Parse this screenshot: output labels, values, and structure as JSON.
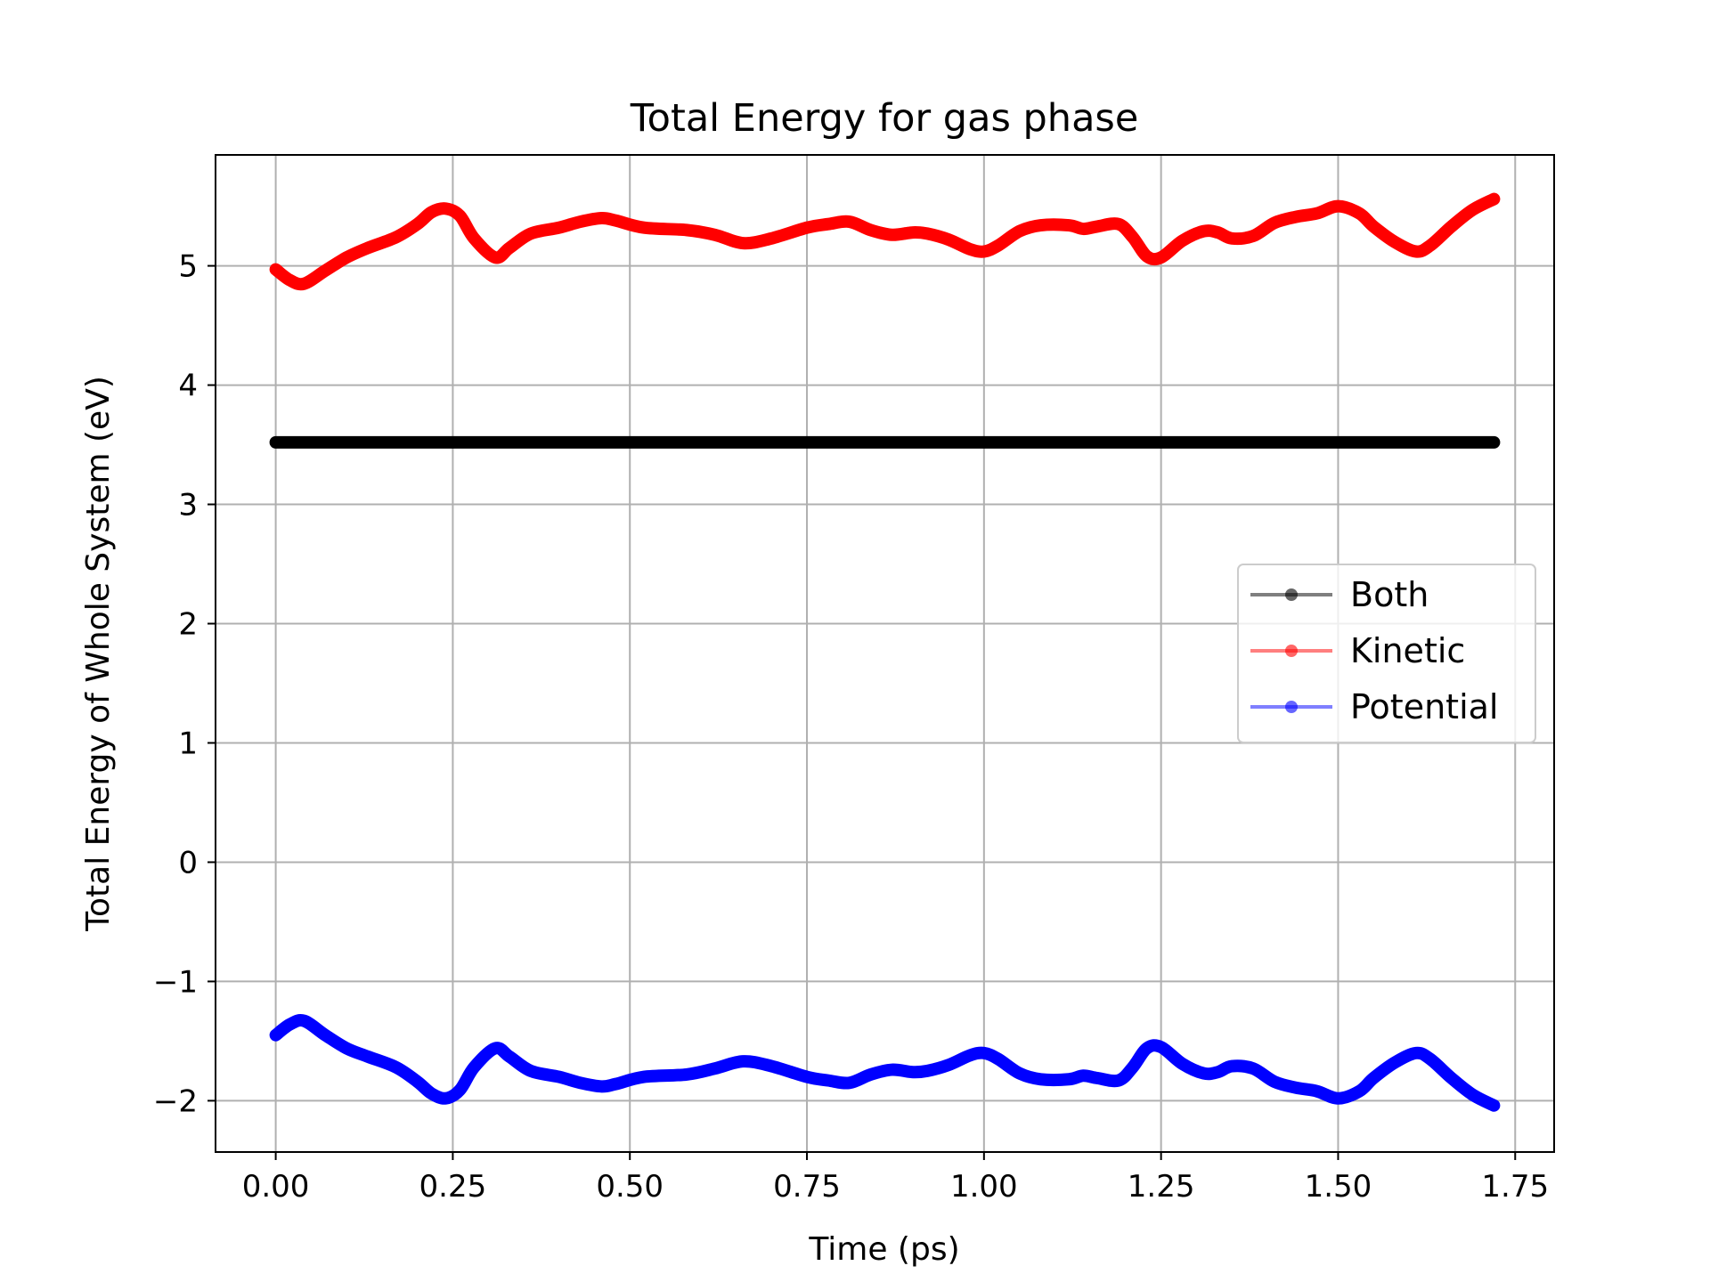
{
  "chart_data": {
    "type": "line",
    "title": "Total Energy for gas phase",
    "xlabel": "Time (ps)",
    "ylabel": "Total Energy of Whole System (eV)",
    "xlim": [
      -0.085,
      1.805
    ],
    "ylim": [
      -2.43,
      5.93
    ],
    "x_ticks": [
      0.0,
      0.25,
      0.5,
      0.75,
      1.0,
      1.25,
      1.5,
      1.75
    ],
    "x_tick_labels": [
      "0.00",
      "0.25",
      "0.50",
      "0.75",
      "1.00",
      "1.25",
      "1.50",
      "1.75"
    ],
    "y_ticks": [
      -2,
      -1,
      0,
      1,
      2,
      3,
      4,
      5
    ],
    "y_tick_labels": [
      "−2",
      "−1",
      "0",
      "1",
      "2",
      "3",
      "4",
      "5"
    ],
    "grid": true,
    "legend_position": "center-right",
    "series": [
      {
        "name": "Both",
        "color": "#000000",
        "x": [
          0.0,
          0.25,
          0.5,
          0.75,
          1.0,
          1.25,
          1.5,
          1.72
        ],
        "y": [
          3.52,
          3.52,
          3.52,
          3.52,
          3.52,
          3.52,
          3.52,
          3.52
        ]
      },
      {
        "name": "Kinetic",
        "color": "#ff0000",
        "x": [
          0.0,
          0.02,
          0.04,
          0.07,
          0.1,
          0.13,
          0.17,
          0.2,
          0.22,
          0.24,
          0.26,
          0.28,
          0.31,
          0.33,
          0.36,
          0.4,
          0.43,
          0.46,
          0.48,
          0.52,
          0.58,
          0.62,
          0.66,
          0.7,
          0.75,
          0.78,
          0.81,
          0.84,
          0.87,
          0.9,
          0.92,
          0.95,
          0.98,
          1.0,
          1.02,
          1.05,
          1.08,
          1.12,
          1.14,
          1.16,
          1.19,
          1.21,
          1.23,
          1.25,
          1.28,
          1.31,
          1.33,
          1.35,
          1.38,
          1.41,
          1.44,
          1.47,
          1.5,
          1.53,
          1.55,
          1.58,
          1.61,
          1.63,
          1.66,
          1.69,
          1.72
        ],
        "y": [
          4.97,
          4.88,
          4.85,
          4.96,
          5.07,
          5.15,
          5.24,
          5.35,
          5.45,
          5.48,
          5.42,
          5.23,
          5.07,
          5.15,
          5.27,
          5.32,
          5.37,
          5.4,
          5.38,
          5.32,
          5.3,
          5.26,
          5.19,
          5.23,
          5.32,
          5.35,
          5.37,
          5.3,
          5.26,
          5.28,
          5.27,
          5.22,
          5.14,
          5.12,
          5.17,
          5.29,
          5.34,
          5.34,
          5.31,
          5.33,
          5.35,
          5.24,
          5.08,
          5.07,
          5.21,
          5.29,
          5.28,
          5.23,
          5.25,
          5.36,
          5.41,
          5.44,
          5.5,
          5.44,
          5.33,
          5.2,
          5.12,
          5.17,
          5.33,
          5.47,
          5.56
        ]
      },
      {
        "name": "Potential",
        "color": "#0000ff",
        "x": [
          0.0,
          0.02,
          0.04,
          0.07,
          0.1,
          0.13,
          0.17,
          0.2,
          0.22,
          0.24,
          0.26,
          0.28,
          0.31,
          0.33,
          0.36,
          0.4,
          0.43,
          0.46,
          0.48,
          0.52,
          0.58,
          0.62,
          0.66,
          0.7,
          0.75,
          0.78,
          0.81,
          0.84,
          0.87,
          0.9,
          0.92,
          0.95,
          0.98,
          1.0,
          1.02,
          1.05,
          1.08,
          1.12,
          1.14,
          1.16,
          1.19,
          1.21,
          1.23,
          1.25,
          1.28,
          1.31,
          1.33,
          1.35,
          1.38,
          1.41,
          1.44,
          1.47,
          1.5,
          1.53,
          1.55,
          1.58,
          1.61,
          1.63,
          1.66,
          1.69,
          1.72
        ],
        "y": [
          -1.45,
          -1.36,
          -1.33,
          -1.45,
          -1.56,
          -1.63,
          -1.72,
          -1.84,
          -1.94,
          -1.98,
          -1.91,
          -1.72,
          -1.56,
          -1.63,
          -1.75,
          -1.8,
          -1.85,
          -1.88,
          -1.86,
          -1.8,
          -1.78,
          -1.73,
          -1.67,
          -1.71,
          -1.8,
          -1.83,
          -1.85,
          -1.78,
          -1.74,
          -1.76,
          -1.75,
          -1.7,
          -1.62,
          -1.6,
          -1.65,
          -1.77,
          -1.82,
          -1.82,
          -1.79,
          -1.81,
          -1.83,
          -1.72,
          -1.56,
          -1.55,
          -1.69,
          -1.77,
          -1.76,
          -1.71,
          -1.73,
          -1.84,
          -1.89,
          -1.92,
          -1.98,
          -1.92,
          -1.81,
          -1.68,
          -1.6,
          -1.65,
          -1.81,
          -1.95,
          -2.04
        ]
      }
    ]
  }
}
